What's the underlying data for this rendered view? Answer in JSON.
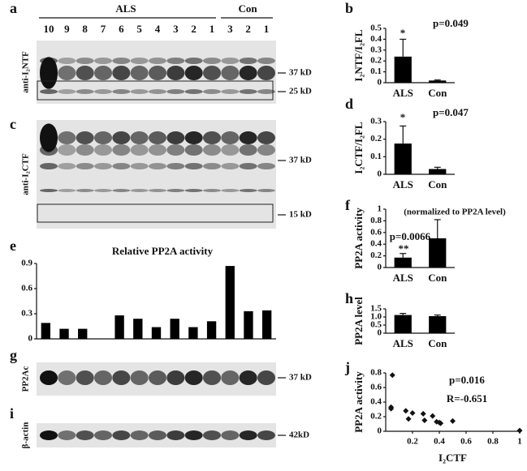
{
  "blots": {
    "groups": [
      "ALS",
      "Con"
    ],
    "lanes": [
      "10",
      "9",
      "8",
      "7",
      "6",
      "5",
      "4",
      "3",
      "2",
      "1",
      "3",
      "2",
      "1"
    ],
    "panels": [
      {
        "letter": "a",
        "antibody": "anti-I₂NTF",
        "markers": [
          "37 kD",
          "25 kD"
        ]
      },
      {
        "letter": "c",
        "antibody": "anti-I₂CTF",
        "markers": [
          "37 kD",
          "15 kD"
        ]
      },
      {
        "letter": "g",
        "antibody": "PP2Ac",
        "markers": [
          "37 kD"
        ]
      },
      {
        "letter": "i",
        "antibody": "β-actin",
        "markers": [
          "42kD"
        ]
      }
    ]
  },
  "chart_data": [
    {
      "type": "bar",
      "panel": "b",
      "ylabel": "I₂NTF/I₂FL",
      "categories": [
        "ALS",
        "Con"
      ],
      "values": [
        0.24,
        0.02
      ],
      "errors": [
        0.16,
        0.005
      ],
      "color": "#000000",
      "ylim": [
        0,
        0.5
      ],
      "yticks": [
        0,
        0.1,
        0.2,
        0.3,
        0.4,
        0.5
      ],
      "annotations": [
        "*",
        "p=0.049"
      ]
    },
    {
      "type": "bar",
      "panel": "d",
      "ylabel": "I₂CTF/I₂FL",
      "categories": [
        "ALS",
        "Con"
      ],
      "values": [
        0.175,
        0.03
      ],
      "errors": [
        0.1,
        0.01
      ],
      "color": "#000000",
      "ylim": [
        0,
        0.3
      ],
      "yticks": [
        0,
        0.1,
        0.2,
        0.3
      ],
      "annotations": [
        "*",
        "p=0.047"
      ]
    },
    {
      "type": "bar",
      "panel": "f",
      "ylabel": "PP2A activity",
      "categories": [
        "ALS",
        "Con"
      ],
      "values": [
        0.17,
        0.5
      ],
      "errors": [
        0.07,
        0.32
      ],
      "color": "#000000",
      "ylim": [
        0,
        1
      ],
      "yticks": [
        0,
        0.2,
        0.4,
        0.6,
        0.8,
        1
      ],
      "annotations": [
        "(normalized to PP2A level)",
        "p=0.0066",
        "**"
      ]
    },
    {
      "type": "bar",
      "panel": "h",
      "ylabel": "PP2A level",
      "categories": [
        "ALS",
        "Con"
      ],
      "values": [
        1.12,
        1.05
      ],
      "errors": [
        0.1,
        0.07
      ],
      "color": "#000000",
      "ylim": [
        0,
        1.5
      ],
      "yticks": [
        0,
        0.5,
        {
          "value": 1,
          "label": "1.0"
        },
        1.5
      ],
      "annotations": []
    },
    {
      "type": "bar",
      "panel": "e",
      "title": "Relative PP2A activity",
      "categories": [
        null,
        null,
        null,
        null,
        null,
        null,
        null,
        null,
        null,
        null,
        null,
        null,
        null
      ],
      "values": [
        0.19,
        0.12,
        0.12,
        null,
        0.28,
        0.24,
        0.14,
        0.24,
        0.14,
        0.21,
        0.87,
        0.33,
        0.34
      ],
      "color": "#000000",
      "ylim": [
        0,
        0.9
      ],
      "yticks": [
        0,
        0.3,
        0.6,
        0.9
      ],
      "annotations": []
    },
    {
      "type": "scatter",
      "panel": "j",
      "xlabel": "I₂CTF",
      "ylabel": "PP2A activity",
      "x": [
        0.05,
        0.04,
        0.04,
        0.15,
        0.2,
        0.17,
        0.28,
        0.29,
        0.35,
        0.38,
        0.41,
        0.4,
        0.5,
        1
      ],
      "values": [
        0.77,
        0.33,
        0.31,
        0.28,
        0.25,
        0.17,
        0.24,
        0.15,
        0.21,
        0.13,
        0.11,
        0.12,
        0.14,
        0.01
      ],
      "color": "#111111",
      "xlim": [
        0,
        1
      ],
      "xticks": [
        0.2,
        0.4,
        0.6,
        0.8,
        1
      ],
      "ylim": [
        0,
        0.8
      ],
      "yticks": [
        0,
        0.2,
        0.4,
        0.6,
        0.8
      ],
      "annotations": [
        "p=0.016",
        "R=-0.651"
      ]
    }
  ]
}
